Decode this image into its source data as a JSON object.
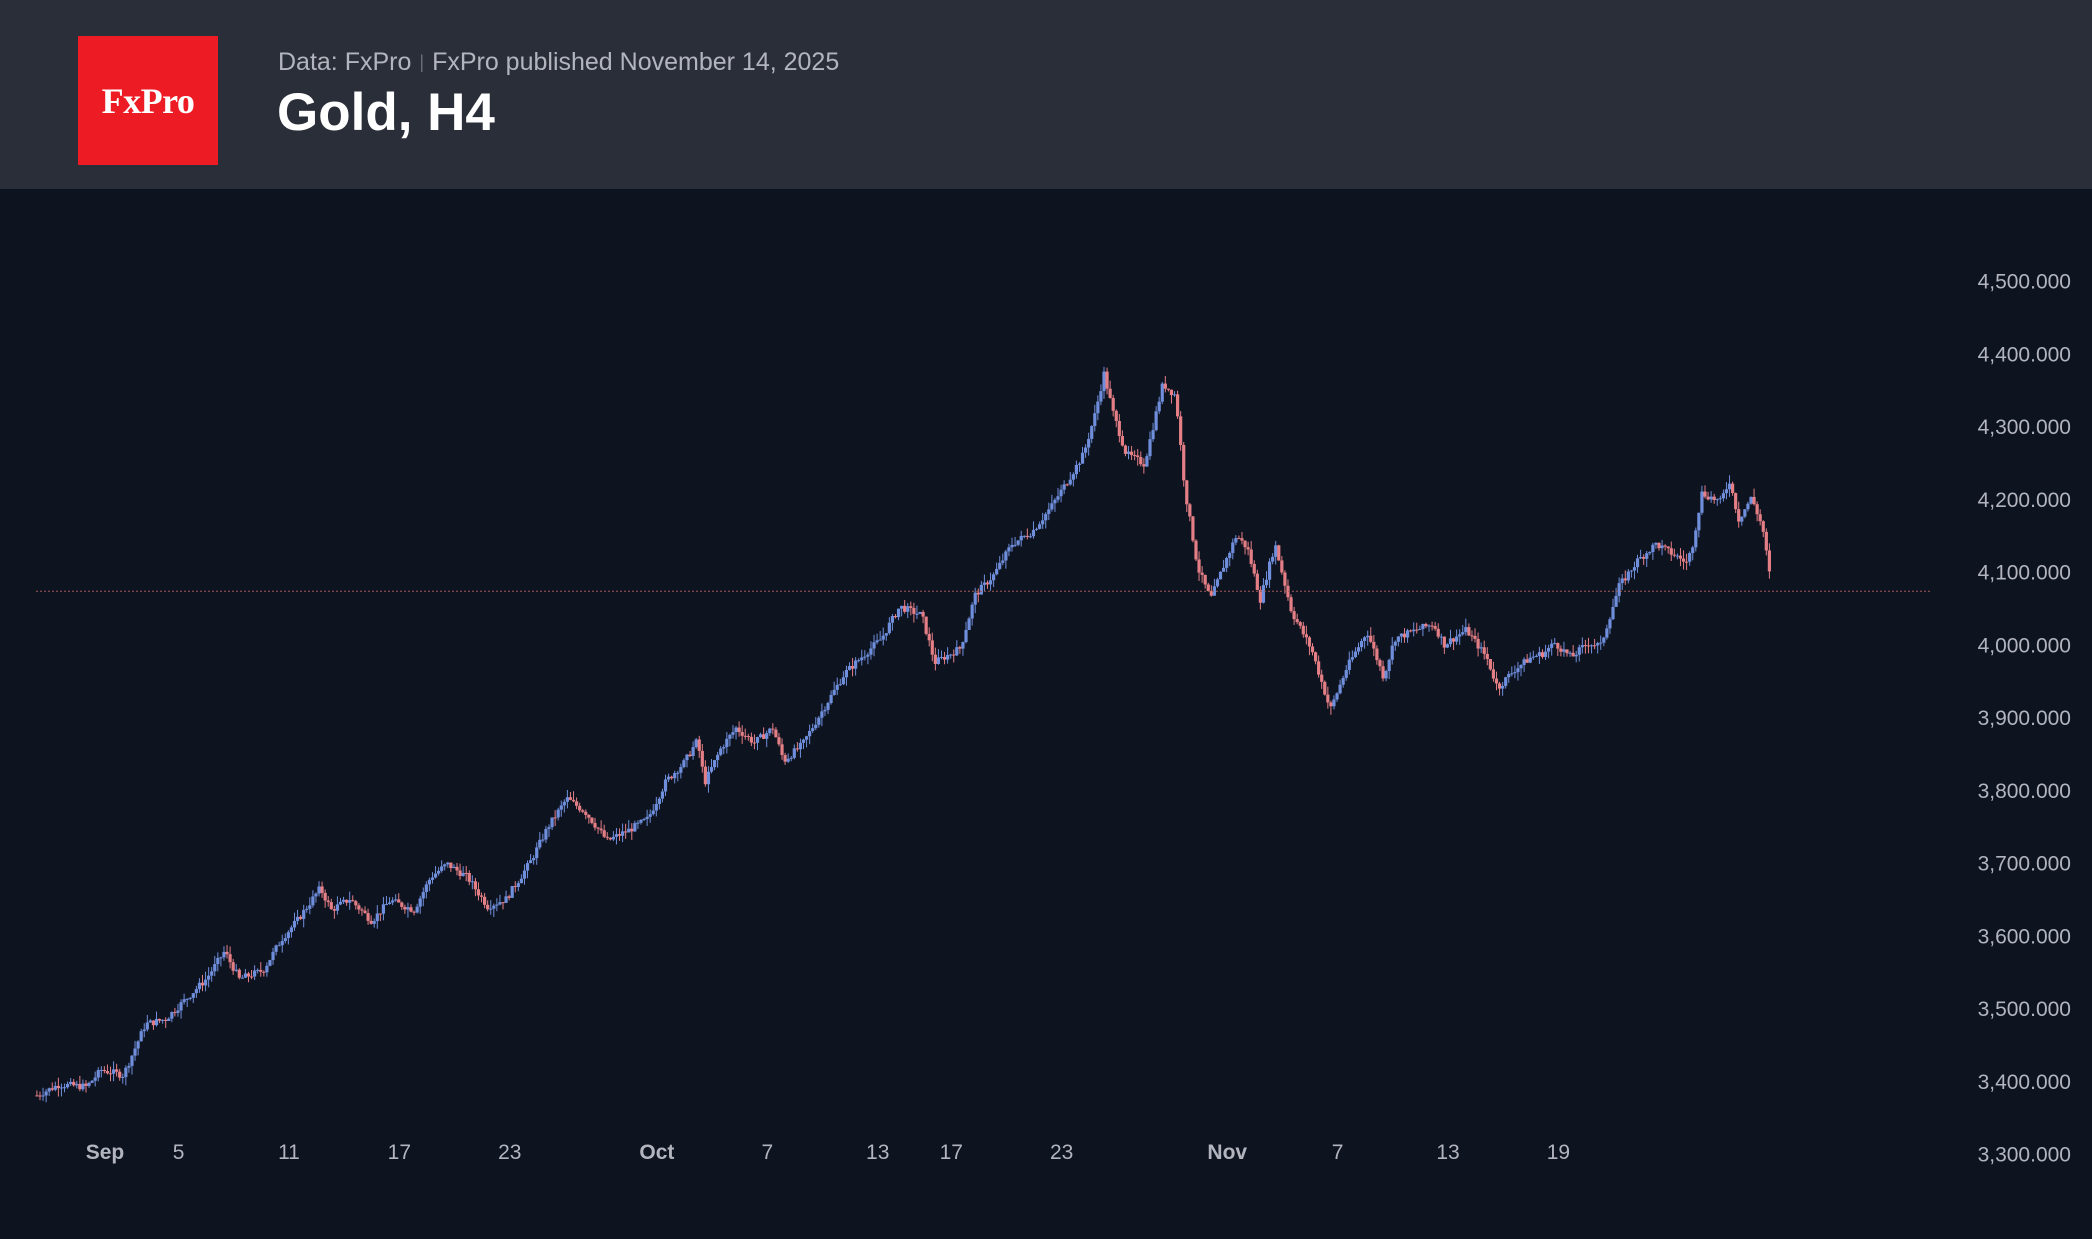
{
  "header": {
    "logo_text": "FxPro",
    "data_source": "Data: FxPro",
    "published": "FxPro published November 14, 2025",
    "title": "Gold, H4"
  },
  "colors": {
    "background": "#0e1320",
    "header_bg": "#2a2e39",
    "logo_bg": "#ed1c24",
    "up": "#6f8fdc",
    "down": "#e57f86",
    "price_line": "#a15b55",
    "axis_text": "#b2b5be"
  },
  "chart_data": {
    "type": "candlestick",
    "title": "Gold, H4",
    "xlabel": "",
    "ylabel": "",
    "ylim": [
      3250,
      4560
    ],
    "y_ticks": [
      "3,300.000",
      "3,400.000",
      "3,500.000",
      "3,600.000",
      "3,700.000",
      "3,800.000",
      "3,900.000",
      "4,000.000",
      "4,100.000",
      "4,200.000",
      "4,300.000",
      "4,400.000",
      "4,500.000"
    ],
    "y_tick_values": [
      3300,
      3400,
      3500,
      3600,
      3700,
      3800,
      3900,
      4000,
      4100,
      4200,
      4300,
      4400,
      4500
    ],
    "x_ticks": [
      {
        "label": "Sep",
        "day": 1,
        "bold": true
      },
      {
        "label": "5",
        "day": 5,
        "bold": false
      },
      {
        "label": "11",
        "day": 11,
        "bold": false
      },
      {
        "label": "17",
        "day": 17,
        "bold": false
      },
      {
        "label": "23",
        "day": 23,
        "bold": false
      },
      {
        "label": "Oct",
        "day": 31,
        "bold": true
      },
      {
        "label": "7",
        "day": 37,
        "bold": false
      },
      {
        "label": "13",
        "day": 43,
        "bold": false
      },
      {
        "label": "17",
        "day": 47,
        "bold": false
      },
      {
        "label": "23",
        "day": 53,
        "bold": false
      },
      {
        "label": "Nov",
        "day": 62,
        "bold": true
      },
      {
        "label": "7",
        "day": 68,
        "bold": false
      },
      {
        "label": "13",
        "day": 74,
        "bold": false
      },
      {
        "label": "19",
        "day": 80,
        "bold": false
      }
    ],
    "x_domain_days": [
      -2.75,
      91.5
    ],
    "current_price": 4073,
    "close_path": [
      [
        -2.7,
        3380
      ],
      [
        -1.5,
        3395
      ],
      [
        0,
        3392
      ],
      [
        0.8,
        3415
      ],
      [
        2,
        3408
      ],
      [
        3.2,
        3478
      ],
      [
        4.3,
        3485
      ],
      [
        5.5,
        3515
      ],
      [
        6.5,
        3540
      ],
      [
        7.5,
        3578
      ],
      [
        8.3,
        3540
      ],
      [
        9.6,
        3552
      ],
      [
        10.6,
        3595
      ],
      [
        11.5,
        3622
      ],
      [
        12.7,
        3665
      ],
      [
        13.3,
        3635
      ],
      [
        14.3,
        3650
      ],
      [
        15.5,
        3620
      ],
      [
        16.5,
        3648
      ],
      [
        17.8,
        3635
      ],
      [
        18.7,
        3680
      ],
      [
        19.6,
        3698
      ],
      [
        20.7,
        3680
      ],
      [
        21.8,
        3640
      ],
      [
        22.8,
        3650
      ],
      [
        24.1,
        3700
      ],
      [
        25.1,
        3750
      ],
      [
        26.1,
        3788
      ],
      [
        27.1,
        3770
      ],
      [
        28.3,
        3730
      ],
      [
        29.5,
        3745
      ],
      [
        30.5,
        3760
      ],
      [
        31.5,
        3812
      ],
      [
        32.5,
        3838
      ],
      [
        33.2,
        3868
      ],
      [
        33.6,
        3810
      ],
      [
        34.5,
        3858
      ],
      [
        35.3,
        3885
      ],
      [
        36.3,
        3865
      ],
      [
        37.3,
        3885
      ],
      [
        37.9,
        3840
      ],
      [
        38.9,
        3862
      ],
      [
        39.9,
        3905
      ],
      [
        41.2,
        3960
      ],
      [
        42.1,
        3982
      ],
      [
        43.2,
        4008
      ],
      [
        44.2,
        4052
      ],
      [
        45.4,
        4040
      ],
      [
        46.1,
        3975
      ],
      [
        47.5,
        3995
      ],
      [
        48.3,
        4068
      ],
      [
        49.3,
        4095
      ],
      [
        50.3,
        4138
      ],
      [
        51.4,
        4155
      ],
      [
        52.4,
        4188
      ],
      [
        53.4,
        4228
      ],
      [
        54.2,
        4262
      ],
      [
        54.8,
        4315
      ],
      [
        55.3,
        4372
      ],
      [
        55.8,
        4318
      ],
      [
        56.5,
        4262
      ],
      [
        57.5,
        4248
      ],
      [
        58.5,
        4358
      ],
      [
        59.2,
        4342
      ],
      [
        59.7,
        4212
      ],
      [
        60.4,
        4105
      ],
      [
        61.1,
        4062
      ],
      [
        61.8,
        4108
      ],
      [
        62.5,
        4150
      ],
      [
        63.1,
        4132
      ],
      [
        63.8,
        4062
      ],
      [
        64.6,
        4138
      ],
      [
        65.5,
        4045
      ],
      [
        66.6,
        3992
      ],
      [
        67.6,
        3910
      ],
      [
        68.5,
        3968
      ],
      [
        69.6,
        4018
      ],
      [
        70.5,
        3955
      ],
      [
        71.1,
        4008
      ],
      [
        72.5,
        4022
      ],
      [
        73.2,
        4028
      ],
      [
        73.8,
        4000
      ],
      [
        75.0,
        4020
      ],
      [
        76.1,
        3982
      ],
      [
        76.7,
        3940
      ],
      [
        77.6,
        3965
      ],
      [
        78.5,
        3982
      ],
      [
        79.2,
        3988
      ],
      [
        79.8,
        4002
      ],
      [
        80.7,
        3982
      ],
      [
        81.6,
        4002
      ],
      [
        82.3,
        3998
      ],
      [
        83.3,
        4080
      ],
      [
        84.3,
        4115
      ],
      [
        85.3,
        4138
      ],
      [
        86.5,
        4120
      ],
      [
        87.0,
        4112
      ],
      [
        87.3,
        4138
      ],
      [
        87.8,
        4208
      ],
      [
        88.8,
        4196
      ],
      [
        89.3,
        4225
      ],
      [
        89.8,
        4172
      ],
      [
        90.5,
        4202
      ],
      [
        91.1,
        4160
      ],
      [
        91.6,
        4075
      ]
    ]
  }
}
